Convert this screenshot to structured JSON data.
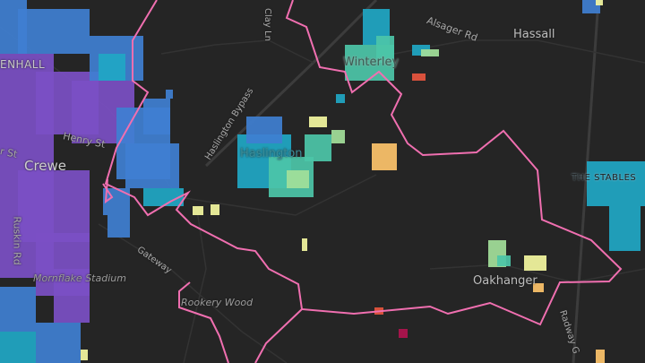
{
  "map": {
    "labels": {
      "coppenhall": "ENHALL",
      "henry_st": "Henry St",
      "crewe": "Crewe",
      "r_st": "r St",
      "ruskin_rd": "Ruskin Rd",
      "mornflake": "Mornflake Stadium",
      "gateway": "Gateway",
      "rookery_wood": "Rookery Wood",
      "clay_ln": "Clay Ln",
      "haslington_bypass": "Haslington Bypass",
      "haslington": "Haslington",
      "winterley": "Winterley",
      "alsager_rd": "Alsager Rd",
      "hassall": "Hassall",
      "the_stables": "THE STABLES",
      "oakhanger": "Oakhanger",
      "radway_green": "Radway G"
    },
    "colors": {
      "background": "#252525",
      "roads": "#3a3a3a",
      "boundary": "#f06fb0",
      "choropleth_scale": [
        "#7b4fc4",
        "#3f7fd1",
        "#1fa7c4",
        "#4cc6a8",
        "#a3e09a",
        "#f4f7a0",
        "#fdc36a",
        "#e8553e",
        "#b0124e"
      ]
    }
  }
}
